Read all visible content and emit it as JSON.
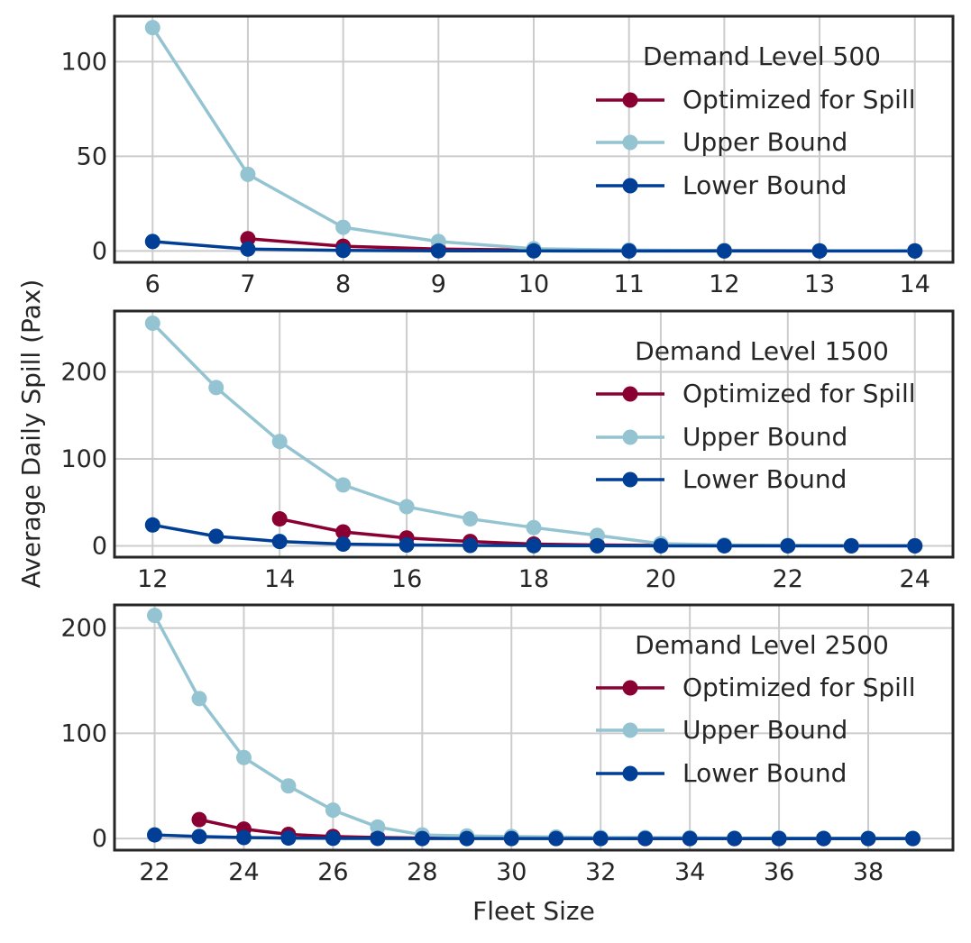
{
  "figure": {
    "shared_ylabel": "Average Daily Spill (Pax)",
    "xlabel": "Fleet Size"
  },
  "colors": {
    "optimized": "#8b0033",
    "upper": "#94c4d1",
    "lower": "#003f95",
    "grid": "#cccccc",
    "frame": "#262626"
  },
  "chart_data": [
    {
      "type": "line",
      "title": "",
      "legend_title": "Demand Level 500",
      "legend_position": "top-right",
      "grid": true,
      "xlim": [
        5.6,
        14.4
      ],
      "ylim": [
        -6,
        124
      ],
      "xticks": [
        6,
        7,
        8,
        9,
        10,
        11,
        12,
        13,
        14
      ],
      "yticks": [
        0,
        50,
        100
      ],
      "series": [
        {
          "name": "Optimized for Spill",
          "key": "optimized",
          "x": [
            7,
            8,
            9,
            10,
            11,
            12,
            13,
            14
          ],
          "values": [
            6.5,
            2.5,
            1,
            0.5,
            0.3,
            0.2,
            0.1,
            0.1
          ]
        },
        {
          "name": "Upper Bound",
          "key": "upper",
          "x": [
            6,
            7,
            8,
            9,
            10,
            11,
            12,
            13,
            14
          ],
          "values": [
            118,
            40.5,
            12.5,
            5,
            1.2,
            0.5,
            0.2,
            0.1,
            0.1
          ]
        },
        {
          "name": "Lower Bound",
          "key": "lower",
          "x": [
            6,
            7,
            8,
            9,
            10,
            11,
            12,
            13,
            14
          ],
          "values": [
            5,
            1,
            0.3,
            0.1,
            0.05,
            0,
            0,
            0,
            0
          ]
        }
      ]
    },
    {
      "type": "line",
      "title": "",
      "legend_title": "Demand Level 1500",
      "legend_position": "top-right",
      "grid": true,
      "xlim": [
        11.4,
        24.6
      ],
      "ylim": [
        -13,
        270
      ],
      "xticks": [
        12,
        14,
        16,
        18,
        20,
        22,
        24
      ],
      "yticks": [
        0,
        100,
        200
      ],
      "series": [
        {
          "name": "Optimized for Spill",
          "key": "optimized",
          "x": [
            14,
            15,
            16,
            17,
            18,
            19,
            20,
            21,
            22,
            23,
            24
          ],
          "values": [
            31,
            16,
            9,
            5,
            2,
            1,
            0.5,
            0.3,
            0.2,
            0.1,
            0.1
          ]
        },
        {
          "name": "Upper Bound",
          "key": "upper",
          "x": [
            12,
            13,
            14,
            15,
            16,
            17,
            18,
            19,
            20,
            21,
            22,
            23,
            24
          ],
          "values": [
            256,
            182,
            120,
            70,
            45,
            31,
            21,
            12,
            2.5,
            1,
            0.5,
            0.2,
            0.1
          ]
        },
        {
          "name": "Lower Bound",
          "key": "lower",
          "x": [
            12,
            13,
            14,
            15,
            16,
            17,
            18,
            19,
            20,
            21,
            22,
            23,
            24
          ],
          "values": [
            24,
            11,
            5,
            2,
            1,
            0.5,
            0.2,
            0.1,
            0,
            0,
            0,
            0,
            0
          ]
        }
      ]
    },
    {
      "type": "line",
      "title": "",
      "legend_title": "Demand Level 2500",
      "legend_position": "top-right",
      "grid": true,
      "xlim": [
        21.1,
        39.9
      ],
      "ylim": [
        -11,
        222
      ],
      "xticks": [
        22,
        24,
        26,
        28,
        30,
        32,
        34,
        36,
        38
      ],
      "yticks": [
        0,
        100,
        200
      ],
      "series": [
        {
          "name": "Optimized for Spill",
          "key": "optimized",
          "x": [
            23,
            24,
            25,
            26,
            27,
            28,
            29,
            30,
            31,
            32,
            33,
            34,
            35,
            36,
            37,
            38,
            39
          ],
          "values": [
            18,
            9,
            4,
            2,
            1,
            0.5,
            0.3,
            0.2,
            0.1,
            0.1,
            0,
            0,
            0,
            0,
            0,
            0,
            0
          ]
        },
        {
          "name": "Upper Bound",
          "key": "upper",
          "x": [
            22,
            23,
            24,
            25,
            26,
            27,
            28,
            29,
            30,
            31,
            32,
            33,
            34,
            35,
            36,
            37,
            38,
            39
          ],
          "values": [
            212,
            133,
            77,
            50,
            27,
            11,
            3.5,
            2.5,
            2,
            1.5,
            1,
            1,
            0.8,
            0.5,
            0.5,
            0.3,
            0.2,
            0.2
          ]
        },
        {
          "name": "Lower Bound",
          "key": "lower",
          "x": [
            22,
            23,
            24,
            25,
            26,
            27,
            28,
            29,
            30,
            31,
            32,
            33,
            34,
            35,
            36,
            37,
            38,
            39
          ],
          "values": [
            3.5,
            2,
            1,
            0.5,
            0.2,
            0.1,
            0,
            0,
            0,
            0,
            0,
            0,
            0,
            0,
            0,
            0,
            0,
            0
          ]
        }
      ]
    }
  ]
}
